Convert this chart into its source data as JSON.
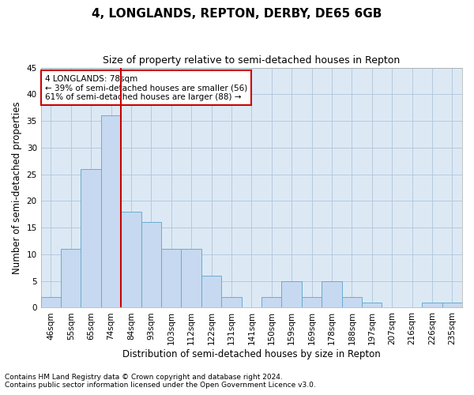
{
  "title": "4, LONGLANDS, REPTON, DERBY, DE65 6GB",
  "subtitle": "Size of property relative to semi-detached houses in Repton",
  "xlabel": "Distribution of semi-detached houses by size in Repton",
  "ylabel": "Number of semi-detached properties",
  "categories": [
    "46sqm",
    "55sqm",
    "65sqm",
    "74sqm",
    "84sqm",
    "93sqm",
    "103sqm",
    "112sqm",
    "122sqm",
    "131sqm",
    "141sqm",
    "150sqm",
    "159sqm",
    "169sqm",
    "178sqm",
    "188sqm",
    "197sqm",
    "207sqm",
    "216sqm",
    "226sqm",
    "235sqm"
  ],
  "values": [
    2,
    11,
    26,
    36,
    18,
    16,
    11,
    11,
    6,
    2,
    0,
    2,
    5,
    2,
    5,
    2,
    1,
    0,
    0,
    1,
    1
  ],
  "bar_color": "#c6d9f0",
  "bar_edgecolor": "#6aabcf",
  "marker_bin_index": 3.5,
  "marker_color": "#cc0000",
  "annotation_text": "4 LONGLANDS: 78sqm\n← 39% of semi-detached houses are smaller (56)\n61% of semi-detached houses are larger (88) →",
  "annotation_box_color": "#ffffff",
  "annotation_box_edgecolor": "#cc0000",
  "ylim": [
    0,
    45
  ],
  "yticks": [
    0,
    5,
    10,
    15,
    20,
    25,
    30,
    35,
    40,
    45
  ],
  "footer_line1": "Contains HM Land Registry data © Crown copyright and database right 2024.",
  "footer_line2": "Contains public sector information licensed under the Open Government Licence v3.0.",
  "background_color": "#ffffff",
  "plot_bg_color": "#dce9f5",
  "grid_color": "#b0c4d8",
  "title_fontsize": 11,
  "subtitle_fontsize": 9,
  "tick_fontsize": 7.5,
  "label_fontsize": 8.5,
  "annotation_fontsize": 7.5,
  "footer_fontsize": 6.5
}
